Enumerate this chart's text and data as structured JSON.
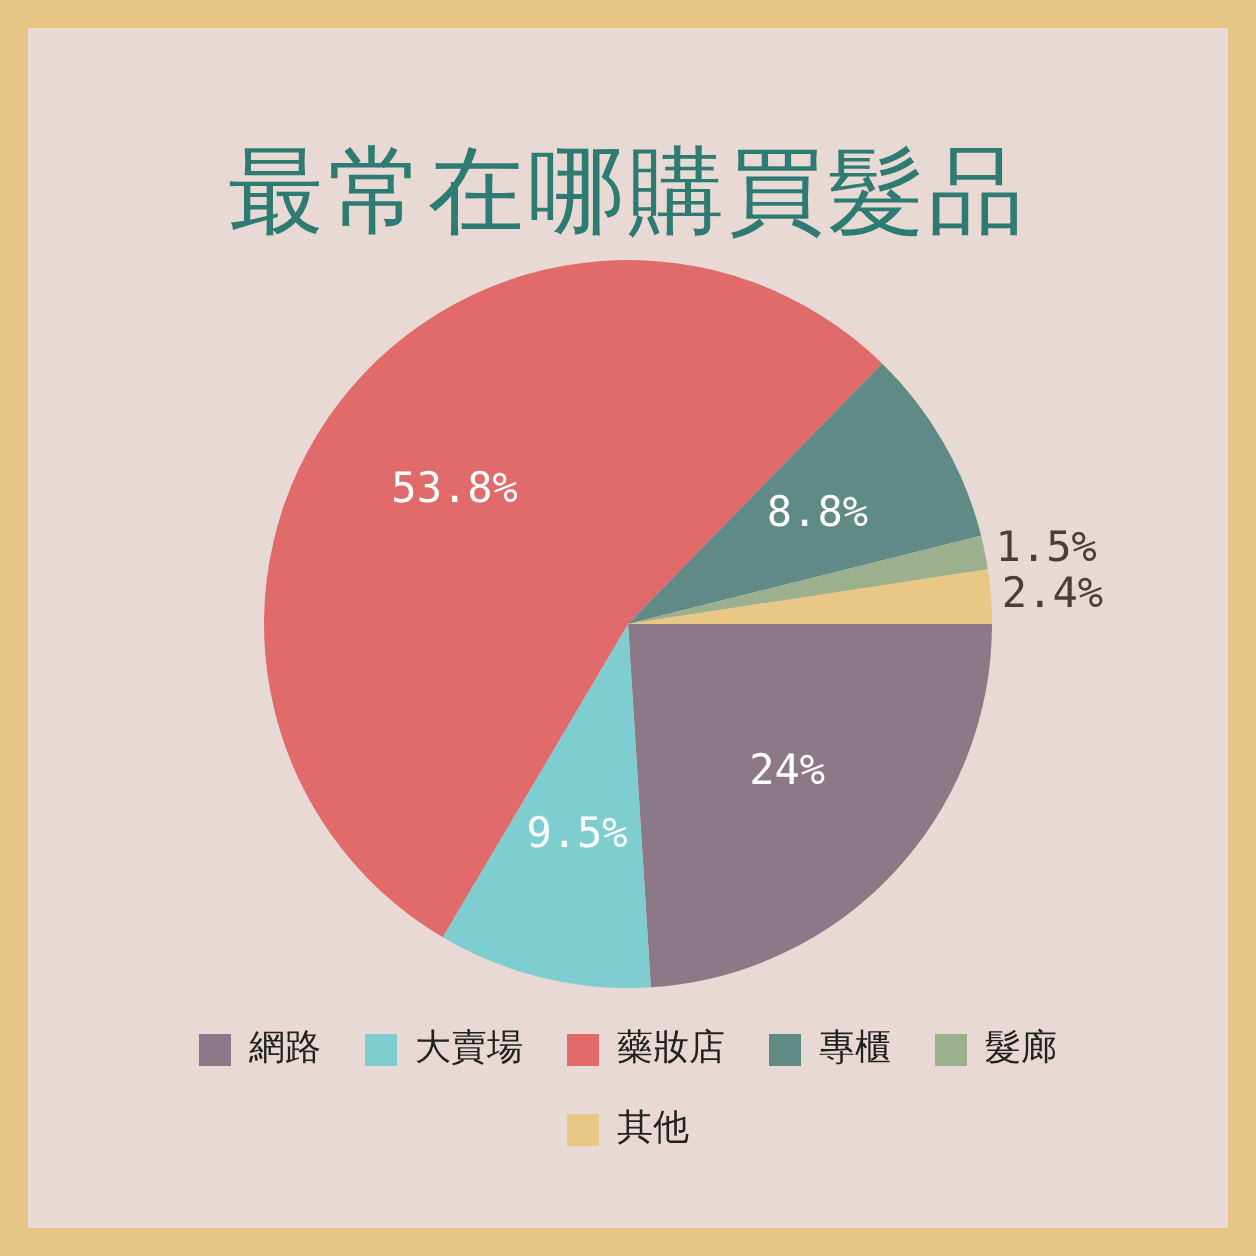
{
  "chart_data": {
    "type": "pie",
    "title": "最常在哪購買髮品",
    "categories": [
      "網路",
      "大賣場",
      "藥妝店",
      "專櫃",
      "髮廊",
      "其他"
    ],
    "values": [
      24,
      9.5,
      53.8,
      8.8,
      1.5,
      2.4
    ],
    "value_labels": [
      "24%",
      "9.5%",
      "53.8%",
      "8.8%",
      "1.5%",
      "2.4%"
    ],
    "colors": [
      "#8c7887",
      "#7ecdd0",
      "#e06b6a",
      "#5f8a86",
      "#9db08d",
      "#e8c884"
    ],
    "legend": "bottom"
  }
}
